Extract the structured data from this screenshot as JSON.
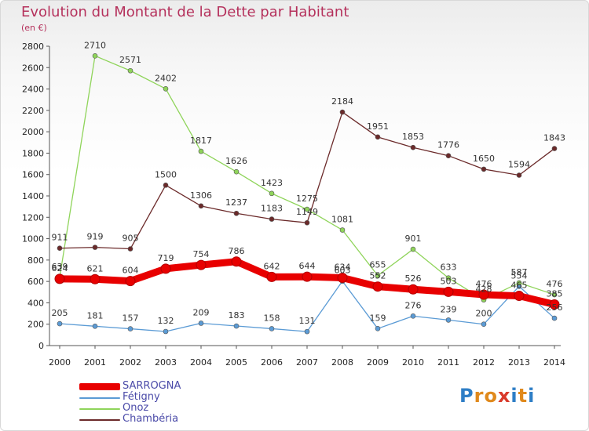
{
  "header": {
    "title": "Evolution du Montant de la Dette par Habitant",
    "subtitle": "(en €)"
  },
  "logo": {
    "text": "Proxiti",
    "colors": [
      "#2e7ec6",
      "#e0891c",
      "#e0891c",
      "#d93a2b",
      "#2e7ec6",
      "#e0891c",
      "#2e7ec6"
    ]
  },
  "chart_data": {
    "type": "line",
    "title": "Evolution du Montant de la Dette par Habitant",
    "subtitle": "(en €)",
    "x": [
      "2000",
      "2001",
      "2002",
      "2003",
      "2004",
      "2005",
      "2006",
      "2007",
      "2008",
      "2009",
      "2010",
      "2011",
      "2012",
      "2013",
      "2014"
    ],
    "ylim": [
      0,
      2800
    ],
    "yticks": [
      0,
      200,
      400,
      600,
      800,
      1000,
      1200,
      1400,
      1600,
      1800,
      2000,
      2200,
      2400,
      2600,
      2800
    ],
    "grid": false,
    "legend_position": "bottom-left",
    "series": [
      {
        "name": "SARROGNA",
        "color": "#e80000",
        "values": [
          624,
          621,
          604,
          719,
          754,
          786,
          642,
          644,
          634,
          552,
          526,
          503,
          476,
          465,
          385
        ]
      },
      {
        "name": "Fétigny",
        "color": "#5b9bd5",
        "values": [
          205,
          181,
          157,
          132,
          209,
          183,
          158,
          131,
          603,
          159,
          276,
          239,
          200,
          554,
          256
        ]
      },
      {
        "name": "Onoz",
        "color": "#8fd45a",
        "values": [
          639,
          2710,
          2571,
          2402,
          1817,
          1626,
          1423,
          1275,
          1081,
          655,
          901,
          633,
          428,
          587,
          476
        ]
      },
      {
        "name": "Chambéria",
        "color": "#6b2a2a",
        "values": [
          911,
          919,
          905,
          1500,
          1306,
          1237,
          1183,
          1149,
          2184,
          1951,
          1853,
          1776,
          1650,
          1594,
          1843
        ]
      }
    ]
  }
}
